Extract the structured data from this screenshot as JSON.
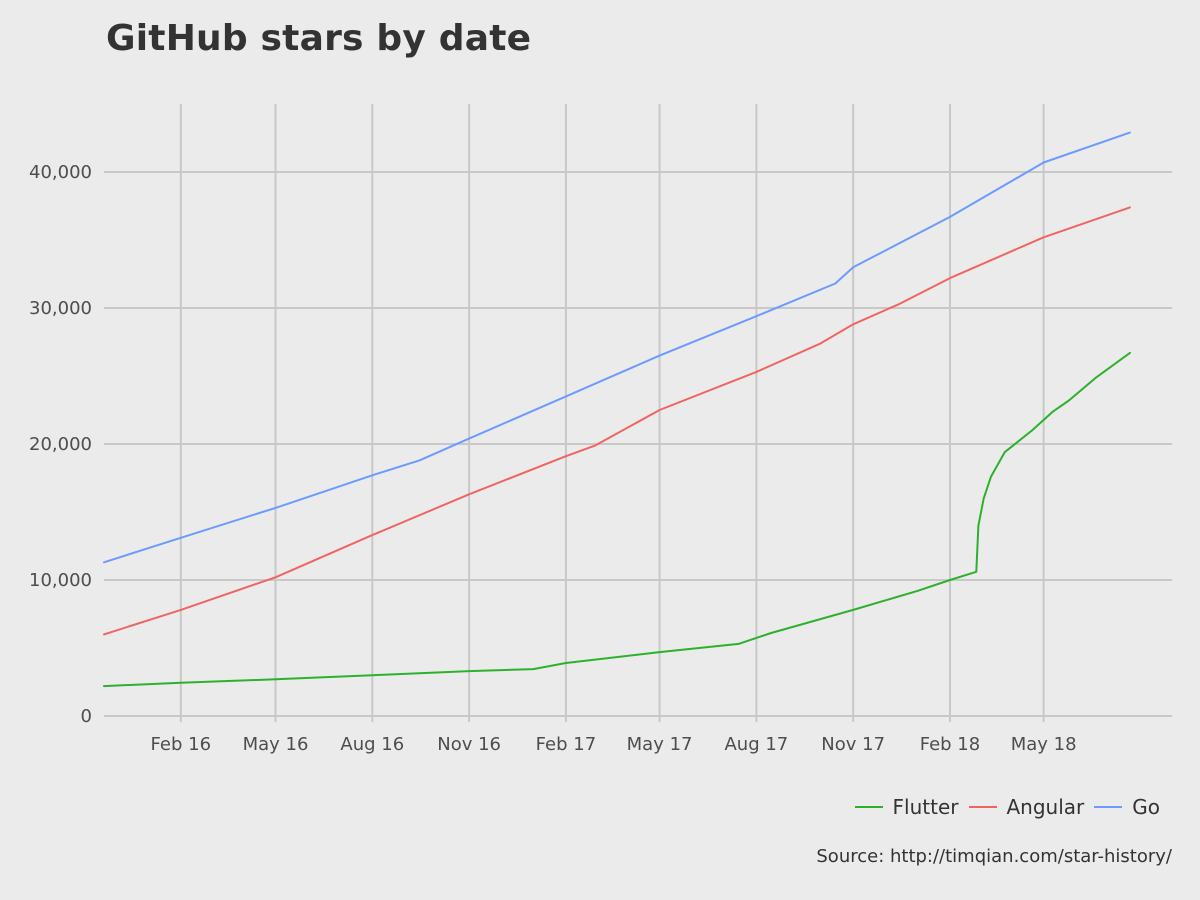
{
  "chart_data": {
    "type": "line",
    "title": "GitHub stars by date",
    "xlabel": "",
    "ylabel": "",
    "x_range": [
      "2015-11-20",
      "2018-08-31"
    ],
    "ylim": [
      0,
      45000
    ],
    "y_ticks": [
      0,
      10000,
      20000,
      30000,
      40000
    ],
    "y_tick_labels": [
      "0",
      "10,000",
      "20,000",
      "30,000",
      "40,000"
    ],
    "x_ticks": [
      "2016-02-01",
      "2016-05-01",
      "2016-08-01",
      "2016-11-01",
      "2017-02-01",
      "2017-05-01",
      "2017-08-01",
      "2017-11-01",
      "2018-02-01",
      "2018-05-01"
    ],
    "x_tick_labels": [
      "Feb 16",
      "May 16",
      "Aug 16",
      "Nov 16",
      "Feb 17",
      "May 17",
      "Aug 17",
      "Nov 17",
      "Feb 18",
      "May 18"
    ],
    "grid": true,
    "legend_position": "bottom-right",
    "series": [
      {
        "name": "Flutter",
        "color": "#2db12d",
        "points": [
          [
            "2015-11-20",
            2200
          ],
          [
            "2016-02-01",
            2450
          ],
          [
            "2016-05-01",
            2700
          ],
          [
            "2016-08-01",
            3000
          ],
          [
            "2016-11-01",
            3300
          ],
          [
            "2017-01-01",
            3450
          ],
          [
            "2017-02-01",
            3900
          ],
          [
            "2017-05-01",
            4700
          ],
          [
            "2017-07-15",
            5300
          ],
          [
            "2017-08-15",
            6100
          ],
          [
            "2017-11-01",
            7800
          ],
          [
            "2018-01-01",
            9200
          ],
          [
            "2018-02-01",
            10000
          ],
          [
            "2018-02-26",
            10600
          ],
          [
            "2018-02-28",
            14000
          ],
          [
            "2018-03-05",
            16000
          ],
          [
            "2018-03-12",
            17600
          ],
          [
            "2018-03-25",
            19400
          ],
          [
            "2018-04-20",
            21000
          ],
          [
            "2018-05-10",
            22400
          ],
          [
            "2018-05-25",
            23200
          ],
          [
            "2018-06-20",
            24900
          ],
          [
            "2018-07-22",
            26700
          ]
        ]
      },
      {
        "name": "Angular",
        "color": "#f06560",
        "points": [
          [
            "2015-11-20",
            6000
          ],
          [
            "2016-02-01",
            7800
          ],
          [
            "2016-05-01",
            10200
          ],
          [
            "2016-08-01",
            13300
          ],
          [
            "2016-11-01",
            16300
          ],
          [
            "2017-02-01",
            19100
          ],
          [
            "2017-03-01",
            19900
          ],
          [
            "2017-05-01",
            22500
          ],
          [
            "2017-08-01",
            25300
          ],
          [
            "2017-10-01",
            27400
          ],
          [
            "2017-11-01",
            28800
          ],
          [
            "2017-12-15",
            30300
          ],
          [
            "2018-02-01",
            32200
          ],
          [
            "2018-05-01",
            35200
          ],
          [
            "2018-07-22",
            37400
          ]
        ]
      },
      {
        "name": "Go",
        "color": "#6b9bff",
        "points": [
          [
            "2015-11-20",
            11300
          ],
          [
            "2016-02-01",
            13100
          ],
          [
            "2016-05-01",
            15300
          ],
          [
            "2016-08-01",
            17700
          ],
          [
            "2016-09-15",
            18800
          ],
          [
            "2016-11-01",
            20400
          ],
          [
            "2017-02-01",
            23500
          ],
          [
            "2017-05-01",
            26500
          ],
          [
            "2017-08-01",
            29400
          ],
          [
            "2017-10-15",
            31800
          ],
          [
            "2017-11-01",
            33000
          ],
          [
            "2018-02-01",
            36700
          ],
          [
            "2018-05-01",
            40700
          ],
          [
            "2018-07-22",
            42900
          ]
        ]
      }
    ]
  },
  "source": "Source: http://timqian.com/star-history/"
}
